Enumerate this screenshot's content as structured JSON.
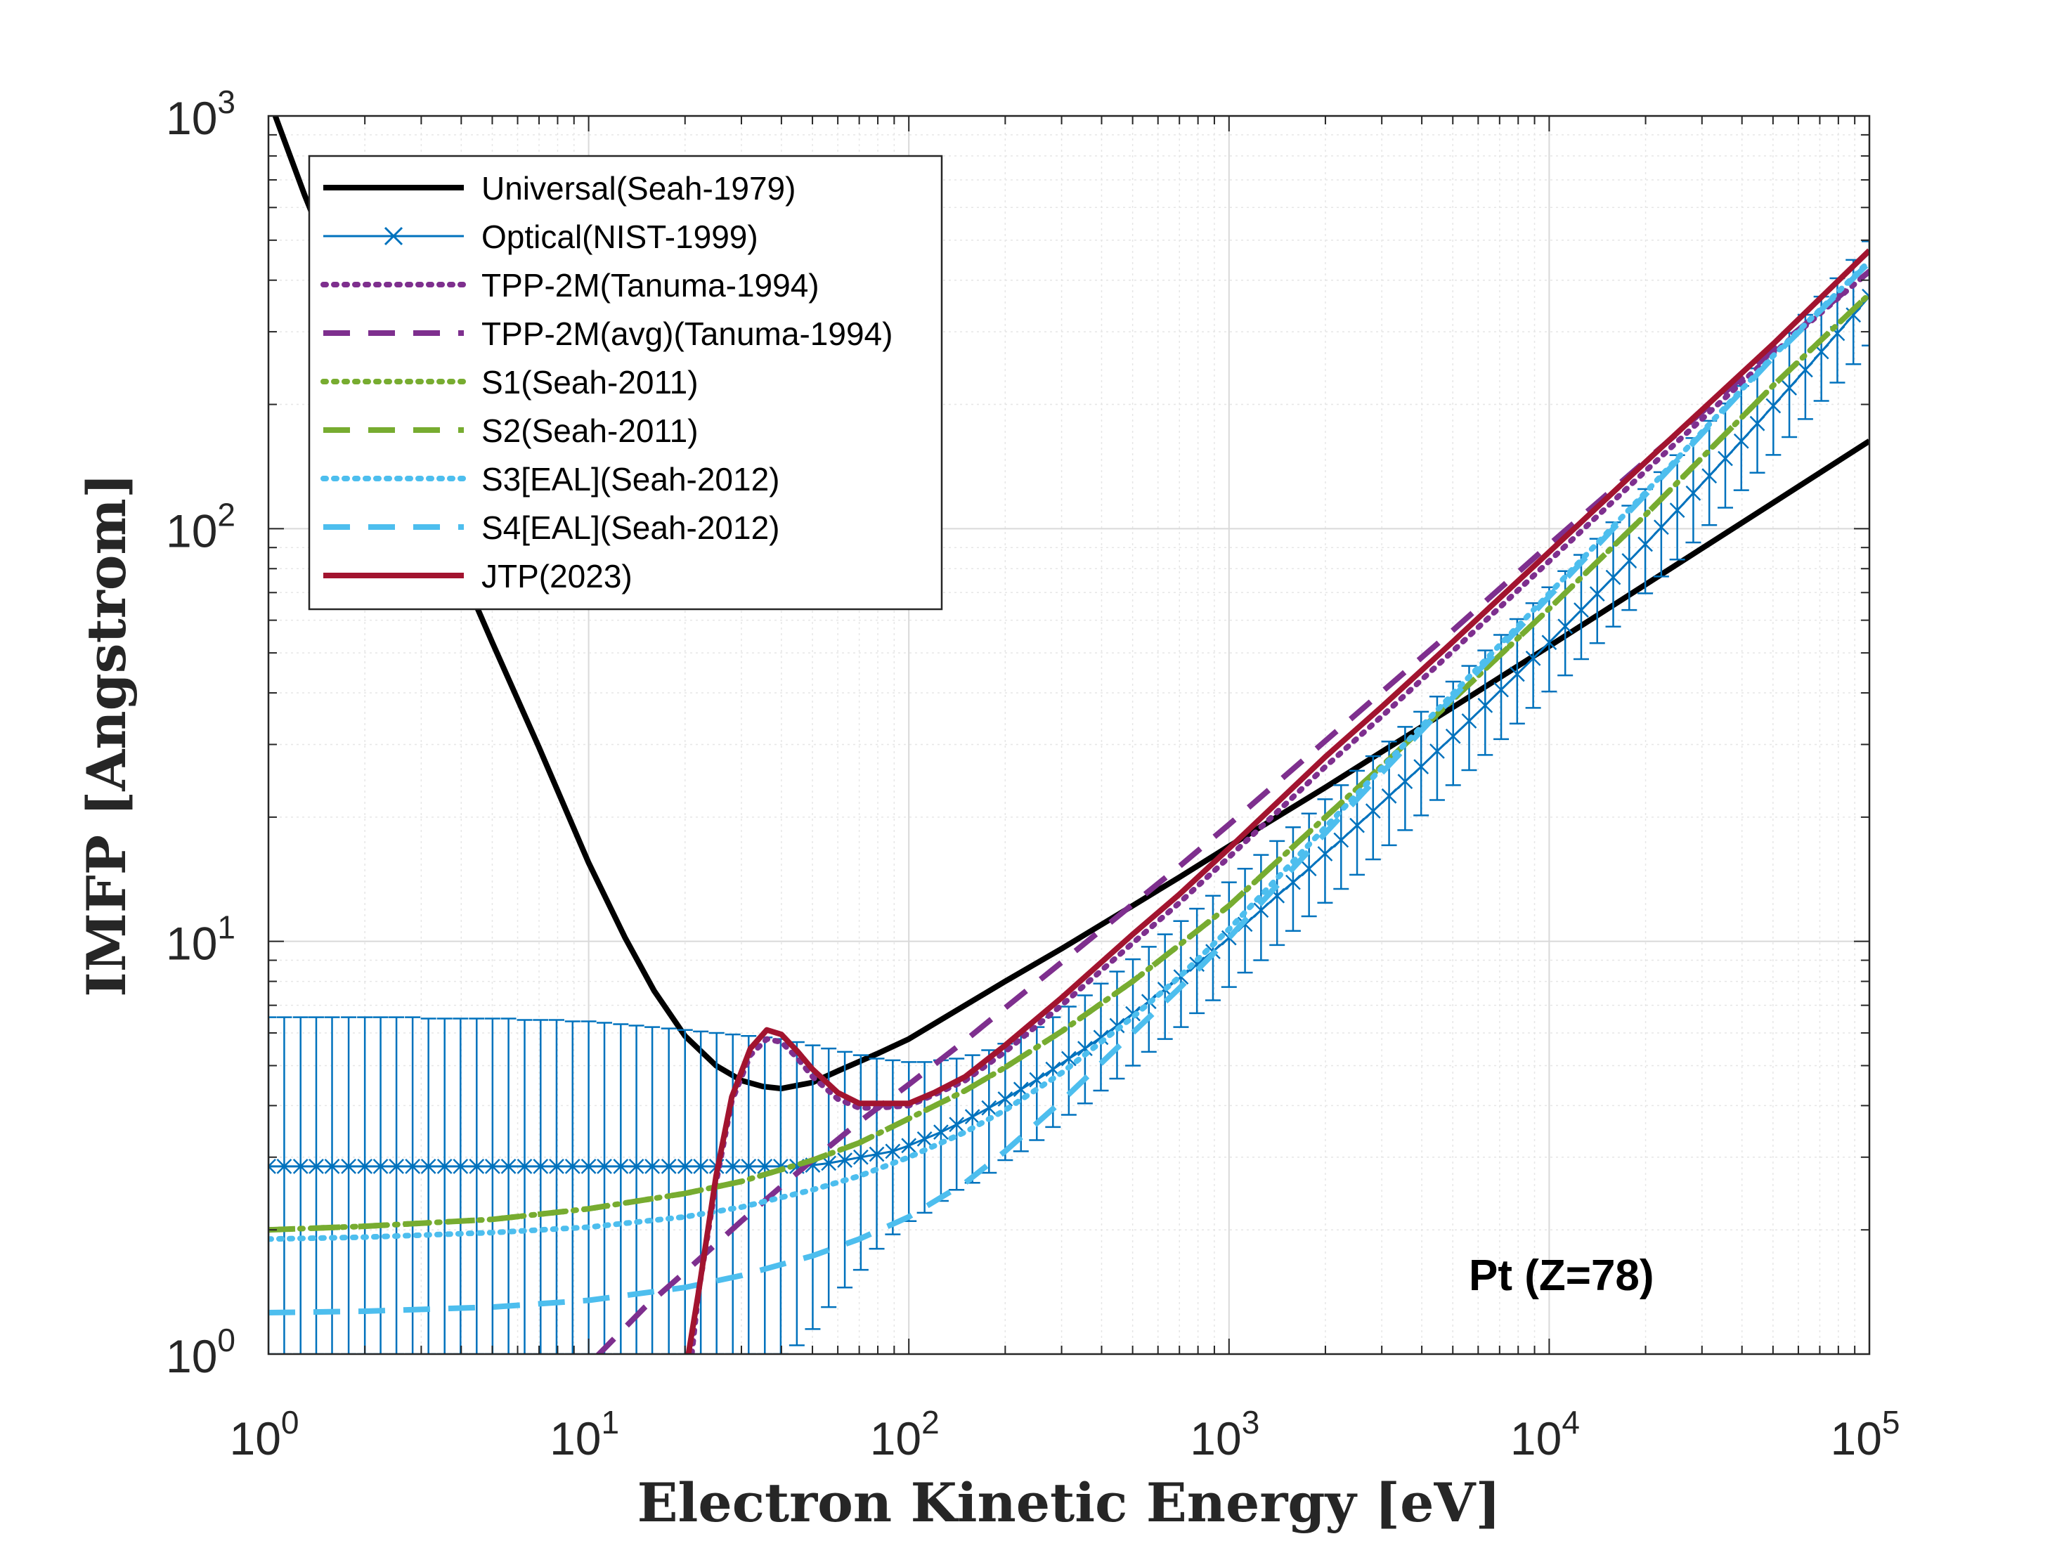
{
  "chart_data": {
    "type": "line",
    "xlabel": "Electron Kinetic Energy [eV]",
    "ylabel": "IMFP [Angstrom]",
    "xscale": "log",
    "yscale": "log",
    "xlim": [
      1,
      100000
    ],
    "ylim": [
      1,
      1000
    ],
    "x_tick_labels": [
      {
        "value": 1,
        "base": "10",
        "exp": "0"
      },
      {
        "value": 10,
        "base": "10",
        "exp": "1"
      },
      {
        "value": 100,
        "base": "10",
        "exp": "2"
      },
      {
        "value": 1000,
        "base": "10",
        "exp": "3"
      },
      {
        "value": 10000,
        "base": "10",
        "exp": "4"
      },
      {
        "value": 100000,
        "base": "10",
        "exp": "5"
      }
    ],
    "y_tick_labels": [
      {
        "value": 1,
        "base": "10",
        "exp": "0"
      },
      {
        "value": 10,
        "base": "10",
        "exp": "1"
      },
      {
        "value": 100,
        "base": "10",
        "exp": "2"
      },
      {
        "value": 1000,
        "base": "10",
        "exp": "3"
      }
    ],
    "grid": true,
    "minor_grid": true,
    "legend_position": "top-left",
    "annotation": "Pt (Z=78)",
    "series": [
      {
        "name": "Universal(Seah-1979)",
        "color": "#000000",
        "style": "solid",
        "width": "thick",
        "x": [
          1.05,
          1.3,
          1.6,
          2,
          2.5,
          3,
          4,
          5,
          7,
          10,
          13,
          16,
          20,
          25,
          30,
          35,
          40,
          50,
          60,
          80,
          100,
          150,
          200,
          300,
          500,
          700,
          1000,
          2000,
          3000,
          5000,
          10000,
          20000,
          50000,
          100000
        ],
        "y": [
          1000,
          640,
          430,
          275,
          182,
          133,
          79,
          53,
          29.5,
          15.5,
          10.2,
          7.6,
          5.9,
          5.0,
          4.6,
          4.45,
          4.4,
          4.55,
          4.85,
          5.35,
          5.8,
          7.0,
          8.0,
          9.6,
          12.2,
          14.3,
          17.0,
          23.6,
          28.8,
          36.9,
          51.9,
          73.2,
          115.5,
          163.1
        ]
      },
      {
        "name": "Optical(NIST-1999)",
        "color": "#0072BD",
        "style": "solid-x-errorbar",
        "width": "thin",
        "x": [
          1.0,
          1.12,
          1.26,
          1.41,
          1.58,
          1.78,
          2.0,
          2.24,
          2.51,
          2.82,
          3.16,
          3.55,
          3.98,
          4.47,
          5.01,
          5.62,
          6.31,
          7.08,
          7.94,
          8.91,
          10.0,
          11.2,
          12.6,
          14.1,
          15.8,
          17.8,
          20.0,
          22.4,
          25.1,
          28.2,
          31.6,
          35.5,
          39.8,
          44.7,
          50.1,
          56.2,
          63.1,
          70.8,
          79.4,
          89.1,
          100,
          112,
          126,
          141,
          158,
          178,
          200,
          224,
          251,
          282,
          316,
          355,
          398,
          447,
          501,
          562,
          631,
          708,
          794,
          891,
          1000,
          1122,
          1259,
          1413,
          1585,
          1778,
          1995,
          2239,
          2512,
          2818,
          3162,
          3548,
          3981,
          4467,
          5012,
          5623,
          6310,
          7079,
          7943,
          8913,
          10000,
          11220,
          12589,
          14125,
          15849,
          17783,
          19953,
          22387,
          25119,
          28184,
          31623,
          35481,
          39811,
          44668,
          50119,
          56234,
          63096,
          70795,
          79433,
          89125,
          100000
        ],
        "y": [
          2.85,
          2.85,
          2.85,
          2.85,
          2.85,
          2.85,
          2.85,
          2.85,
          2.85,
          2.85,
          2.85,
          2.85,
          2.85,
          2.85,
          2.85,
          2.85,
          2.85,
          2.85,
          2.85,
          2.85,
          2.85,
          2.85,
          2.85,
          2.85,
          2.85,
          2.85,
          2.85,
          2.85,
          2.85,
          2.85,
          2.85,
          2.85,
          2.85,
          2.85,
          2.87,
          2.9,
          2.95,
          3.0,
          3.05,
          3.1,
          3.2,
          3.32,
          3.45,
          3.6,
          3.76,
          3.95,
          4.15,
          4.38,
          4.62,
          4.9,
          5.2,
          5.5,
          5.85,
          6.25,
          6.68,
          7.15,
          7.65,
          8.2,
          8.8,
          9.45,
          10.2,
          11.0,
          11.9,
          12.9,
          13.9,
          15.0,
          16.3,
          17.6,
          19.1,
          20.7,
          22.5,
          24.4,
          26.5,
          28.9,
          31.4,
          34.2,
          37.3,
          40.7,
          44.4,
          48.5,
          53.0,
          58.0,
          63.5,
          69.5,
          76.2,
          83.6,
          91.7,
          100.8,
          110.8,
          121.9,
          134.2,
          147.9,
          163.0,
          179.8,
          198.5,
          219.3,
          242.5,
          268.4,
          297.2,
          329.4,
          365.4
        ],
        "err_hi": [
          6.55,
          6.55,
          6.55,
          6.55,
          6.55,
          6.55,
          6.55,
          6.55,
          6.55,
          6.55,
          6.5,
          6.5,
          6.5,
          6.5,
          6.5,
          6.5,
          6.45,
          6.45,
          6.45,
          6.4,
          6.4,
          6.35,
          6.3,
          6.25,
          6.2,
          6.15,
          6.1,
          6.05,
          6.0,
          5.95,
          5.9,
          5.85,
          5.8,
          5.7,
          5.6,
          5.5,
          5.4,
          5.3,
          5.2,
          5.15,
          5.1,
          5.1,
          5.15,
          5.2,
          5.3,
          5.45,
          5.65,
          5.9,
          6.2,
          6.55,
          6.95,
          7.4,
          7.9,
          8.45,
          9.05,
          9.7,
          10.4,
          11.2,
          12.0,
          12.9,
          13.9,
          15.0,
          16.2,
          17.5,
          18.9,
          20.4,
          22.1,
          23.9,
          25.9,
          28.1,
          30.5,
          33.1,
          36.0,
          39.2,
          42.6,
          46.5,
          50.7,
          55.3,
          60.4,
          66.0,
          72.1,
          78.9,
          86.4,
          94.5,
          103.6,
          113.7,
          124.7,
          137.1,
          150.7,
          165.8,
          182.5,
          201.1,
          221.7,
          244.5,
          269.9,
          298.2,
          329.8,
          365.0,
          404.2,
          448.0,
          497.0
        ],
        "err_lo": [
          1.0,
          1.0,
          1.0,
          1.0,
          1.0,
          1.0,
          1.0,
          1.0,
          1.0,
          1.0,
          1.0,
          1.0,
          1.0,
          1.0,
          1.0,
          1.0,
          1.0,
          1.0,
          1.0,
          1.0,
          1.0,
          1.0,
          1.0,
          1.0,
          1.0,
          1.0,
          1.0,
          1.0,
          1.0,
          1.0,
          1.0,
          1.0,
          1.0,
          1.05,
          1.15,
          1.3,
          1.45,
          1.6,
          1.8,
          1.95,
          2.1,
          2.2,
          2.35,
          2.5,
          2.6,
          2.75,
          2.95,
          3.1,
          3.3,
          3.55,
          3.8,
          4.05,
          4.35,
          4.65,
          5.0,
          5.4,
          5.8,
          6.2,
          6.7,
          7.2,
          7.75,
          8.4,
          9.0,
          9.8,
          10.6,
          11.5,
          12.4,
          13.4,
          14.5,
          15.8,
          17.1,
          18.6,
          20.2,
          22.0,
          23.9,
          26.0,
          28.3,
          30.9,
          33.7,
          36.8,
          40.3,
          44.1,
          48.3,
          52.8,
          57.9,
          63.5,
          69.7,
          76.6,
          84.2,
          92.6,
          102.0,
          112.4,
          123.9,
          136.6,
          150.9,
          166.7,
          184.3,
          204.0,
          225.9,
          250.4,
          277.7
        ]
      },
      {
        "name": "TPP-2M(Tanuma-1994)",
        "color": "#7E2F8E",
        "style": "dotted",
        "width": "thick",
        "x": [
          21,
          22,
          25,
          28,
          32,
          36,
          40,
          45,
          50,
          60,
          70,
          80,
          100,
          120,
          150,
          200,
          300,
          500,
          700,
          1000,
          2000,
          3000,
          5000,
          10000,
          20000,
          50000,
          100000
        ],
        "y": [
          1.0,
          1.4,
          2.6,
          4.1,
          5.3,
          5.8,
          5.7,
          5.2,
          4.7,
          4.15,
          3.95,
          3.95,
          4.0,
          4.25,
          4.6,
          5.4,
          7.0,
          9.9,
          12.4,
          16.0,
          26.5,
          35.1,
          50.5,
          83.4,
          138.0,
          265.5,
          420.0
        ]
      },
      {
        "name": "TPP-2M(avg)(Tanuma-1994)",
        "color": "#7E2F8E",
        "style": "dashed",
        "width": "thick",
        "x": [
          10.5,
          15,
          20,
          30,
          40,
          50,
          70,
          100,
          150,
          200,
          300,
          500,
          700,
          1000,
          2000,
          3000,
          5000,
          10000,
          20000,
          50000,
          100000
        ],
        "y": [
          0.98,
          1.3,
          1.58,
          2.1,
          2.55,
          2.95,
          3.65,
          4.5,
          5.75,
          6.9,
          8.9,
          12.3,
          15.2,
          19.2,
          30.6,
          40.2,
          56.7,
          91.5,
          146.0,
          270.0,
          420.0
        ]
      },
      {
        "name": "S1(Seah-2011)",
        "color": "#77AC30",
        "style": "dotted",
        "width": "thick",
        "x": [
          1,
          2,
          5,
          10,
          20,
          30,
          50,
          70,
          100,
          150,
          200,
          300,
          500,
          700,
          1000,
          2000,
          3000,
          5000,
          10000,
          20000,
          50000,
          100000
        ],
        "y": [
          2.0,
          2.04,
          2.12,
          2.25,
          2.45,
          2.62,
          2.95,
          3.25,
          3.72,
          4.35,
          4.95,
          6.05,
          8.0,
          9.8,
          12.2,
          20.0,
          26.6,
          38.5,
          64.0,
          108.0,
          222.0,
          370.0
        ]
      },
      {
        "name": "S2(Seah-2011)",
        "color": "#77AC30",
        "style": "dashed",
        "width": "thick",
        "x": [
          1,
          2,
          5,
          10,
          20,
          30,
          50,
          70,
          100,
          150,
          200,
          300,
          500,
          700,
          1000,
          2000,
          3000,
          5000,
          10000,
          20000,
          50000,
          100000
        ],
        "y": [
          2.0,
          2.04,
          2.12,
          2.25,
          2.45,
          2.62,
          2.95,
          3.25,
          3.72,
          4.35,
          4.95,
          6.05,
          8.0,
          9.8,
          12.2,
          20.0,
          26.6,
          38.5,
          64.0,
          108.0,
          222.0,
          370.0
        ]
      },
      {
        "name": "S3[EAL](Seah-2012)",
        "color": "#4DBEEE",
        "style": "dotted",
        "width": "thick",
        "x": [
          1,
          2,
          5,
          10,
          20,
          30,
          50,
          70,
          100,
          150,
          200,
          300,
          500,
          700,
          1000,
          2000,
          3000,
          5000,
          10000,
          20000,
          50000,
          100000
        ],
        "y": [
          1.9,
          1.92,
          1.97,
          2.03,
          2.15,
          2.27,
          2.5,
          2.7,
          3.0,
          3.45,
          3.9,
          4.8,
          6.55,
          8.2,
          10.7,
          18.9,
          26.3,
          39.8,
          69.6,
          122.4,
          262.0,
          445.0
        ]
      },
      {
        "name": "S4[EAL](Seah-2012)",
        "color": "#4DBEEE",
        "style": "dashed",
        "width": "thick",
        "x": [
          1,
          2,
          5,
          10,
          20,
          30,
          50,
          70,
          100,
          150,
          200,
          300,
          500,
          700,
          1000,
          2000,
          3000,
          5000,
          10000,
          20000,
          50000,
          100000
        ],
        "y": [
          1.26,
          1.27,
          1.3,
          1.35,
          1.45,
          1.55,
          1.73,
          1.9,
          2.15,
          2.6,
          3.1,
          4.1,
          6.0,
          7.7,
          10.2,
          18.3,
          25.6,
          39.0,
          68.5,
          121.0,
          260.0,
          442.0
        ]
      },
      {
        "name": "JTP(2023)",
        "color": "#A2142F",
        "style": "solid",
        "width": "thick",
        "x": [
          20.5,
          22,
          25,
          28,
          32,
          36,
          40,
          45,
          50,
          60,
          70,
          80,
          100,
          120,
          150,
          200,
          300,
          500,
          700,
          1000,
          2000,
          3000,
          5000,
          10000,
          20000,
          50000,
          100000
        ],
        "y": [
          1.0,
          1.4,
          2.7,
          4.2,
          5.5,
          6.1,
          5.95,
          5.4,
          4.9,
          4.3,
          4.05,
          4.05,
          4.05,
          4.3,
          4.7,
          5.6,
          7.3,
          10.4,
          13.0,
          16.8,
          28.0,
          37.0,
          53.2,
          87.8,
          145.0,
          280.0,
          472.0
        ]
      }
    ]
  }
}
